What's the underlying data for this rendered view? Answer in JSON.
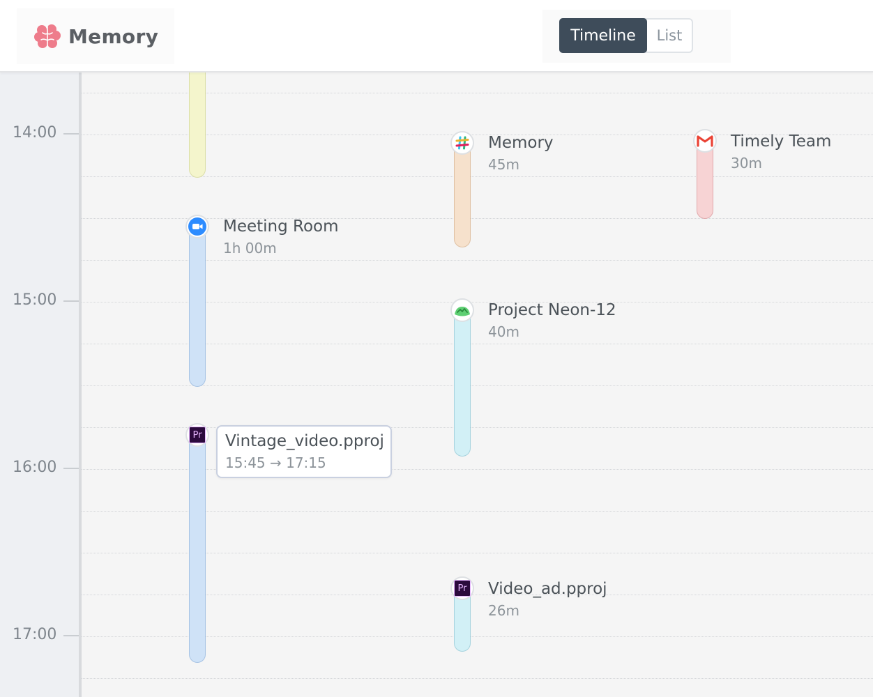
{
  "header": {
    "brand_icon": "brain-icon",
    "brand_name": "Memory",
    "view_switch": {
      "active": "Timeline",
      "inactive": "List"
    }
  },
  "timeline": {
    "hours": [
      "14:00",
      "15:00",
      "16:00",
      "17:00"
    ],
    "events": [
      {
        "app_icon": "slack-icon",
        "title": "Memory",
        "duration": "45m",
        "color": "peach"
      },
      {
        "app_icon": "gmail-icon",
        "title": "Timely Team",
        "duration": "30m",
        "color": "pink"
      },
      {
        "app_icon": "zoom-icon",
        "title": "Meeting Room",
        "duration": "1h 00m",
        "color": "blue"
      },
      {
        "app_icon": "basecamp-icon",
        "title": "Project Neon-12",
        "duration": "40m",
        "color": "cyan"
      },
      {
        "app_icon": "premiere-icon",
        "title": "Vintage_video.pproj",
        "time_range": "15:45 → 17:15",
        "color": "blue",
        "glyph": "Pr"
      },
      {
        "app_icon": "premiere-icon",
        "title": "Video_ad.pproj",
        "duration": "26m",
        "color": "cyan",
        "glyph": "Pr"
      }
    ]
  },
  "colors": {
    "active_tab_bg": "#3e4c5a",
    "brand_icon": "#ee7c8b",
    "blue_bar": "#cfe2f7",
    "cyan_bar": "#d2f0f6",
    "peach_bar": "#f6e1cc",
    "pink_bar": "#f7d3d4",
    "yellow_bar": "#f4f5cc"
  }
}
